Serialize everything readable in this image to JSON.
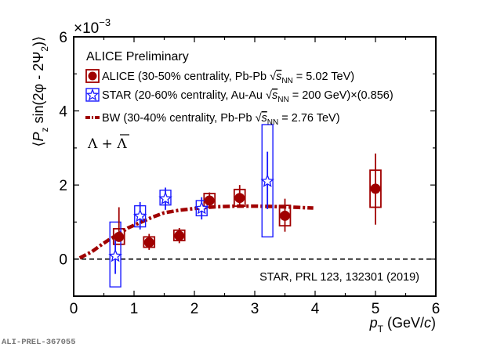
{
  "chart_data": {
    "type": "scatter",
    "title": "ALICE Preliminary",
    "xlabel_main": "p",
    "xlabel_sub": "T",
    "xlabel_unit": " (GeV/",
    "xlabel_unit_c": "c",
    "xlabel_unit_close": ")",
    "ylabel": "⟨P_z sin(2φ - 2Ψ_2)⟩",
    "ylabel_parts": {
      "open": "⟨",
      "P": "P",
      "z": "z",
      "mid": " sin(2φ - 2Ψ",
      "two": "2",
      "close": ")⟩"
    },
    "y_multiplier": "×10",
    "y_multiplier_exp": "−3",
    "xlim": [
      0,
      6
    ],
    "ylim": [
      -1,
      6
    ],
    "xticks": [
      0,
      1,
      2,
      3,
      4,
      5,
      6
    ],
    "yticks": [
      0,
      2,
      4,
      6
    ],
    "grid": false,
    "reference_line": {
      "y": 0,
      "style": "dashed"
    },
    "species_label": "Λ + Λ̄",
    "annotation": "STAR, PRL 123, 132301 (2019)",
    "legend": [
      {
        "name": "ALICE (30-50% centrality, Pb-Pb ",
        "sqrt": "s",
        "sub": "NN",
        "tail": " = 5.02 TeV)",
        "marker": "filled-circle",
        "color": "#a00000"
      },
      {
        "name": "STAR (20-60% centrality, Au-Au ",
        "sqrt": "s",
        "sub": "NN",
        "tail": " = 200 GeV)×(0.856)",
        "marker": "open-star",
        "color": "#1a1aff"
      },
      {
        "name": "BW (30-40% centrality, Pb-Pb ",
        "sqrt": "s",
        "sub": "NN",
        "tail": " = 2.76 TeV)",
        "marker": "dash-dot-line",
        "color": "#a00000"
      }
    ],
    "legend_placement": "top-left",
    "series": [
      {
        "name": "ALICE",
        "color": "#a00000",
        "marker": "filled-circle",
        "points": [
          {
            "x": 0.75,
            "y": 0.6,
            "stat": [
              0.55,
              1.4
            ],
            "sys": [
              0.4,
              0.82
            ],
            "xw": 0.09
          },
          {
            "x": 1.25,
            "y": 0.45,
            "stat": [
              0.25,
              0.68
            ],
            "sys": [
              0.32,
              0.6
            ],
            "xw": 0.09
          },
          {
            "x": 1.75,
            "y": 0.63,
            "stat": [
              0.43,
              0.84
            ],
            "sys": [
              0.5,
              0.78
            ],
            "xw": 0.09
          },
          {
            "x": 2.25,
            "y": 1.58,
            "stat": [
              1.38,
              1.8
            ],
            "sys": [
              1.4,
              1.77
            ],
            "xw": 0.09
          },
          {
            "x": 2.75,
            "y": 1.65,
            "stat": [
              1.4,
              2.0
            ],
            "sys": [
              1.43,
              1.88
            ],
            "xw": 0.09
          },
          {
            "x": 3.5,
            "y": 1.17,
            "stat": [
              0.74,
              1.63
            ],
            "sys": [
              0.9,
              1.45
            ],
            "xw": 0.09
          },
          {
            "x": 5.0,
            "y": 1.9,
            "stat": [
              0.93,
              2.85
            ],
            "sys": [
              1.4,
              2.4
            ],
            "xw": 0.09
          }
        ]
      },
      {
        "name": "STAR",
        "color": "#1a1aff",
        "marker": "open-star",
        "points": [
          {
            "x": 0.69,
            "y": 0.08,
            "stat": [
              -0.4,
              0.6
            ],
            "sys": [
              -0.75,
              1.0
            ],
            "xw": 0.09
          },
          {
            "x": 1.1,
            "y": 1.16,
            "stat": [
              0.8,
              1.54
            ],
            "sys": [
              0.87,
              1.44
            ],
            "xw": 0.09
          },
          {
            "x": 1.52,
            "y": 1.63,
            "stat": [
              1.33,
              1.93
            ],
            "sys": [
              1.46,
              1.86
            ],
            "xw": 0.09
          },
          {
            "x": 2.12,
            "y": 1.37,
            "stat": [
              1.07,
              1.67
            ],
            "sys": [
              1.17,
              1.58
            ],
            "xw": 0.09
          },
          {
            "x": 3.21,
            "y": 2.1,
            "stat": [
              1.35,
              2.9
            ],
            "sys": [
              0.6,
              3.63
            ],
            "xw": 0.09
          }
        ]
      },
      {
        "name": "BW",
        "color": "#a00000",
        "type": "line",
        "style": "dash-dot",
        "x": [
          0.1,
          0.3,
          0.47,
          0.6,
          0.73,
          0.9,
          1.12,
          1.3,
          1.5,
          1.75,
          2.03,
          2.35,
          2.68,
          3.0,
          3.32,
          3.65,
          3.97
        ],
        "y": [
          0.03,
          0.2,
          0.4,
          0.54,
          0.66,
          0.84,
          1.0,
          1.13,
          1.25,
          1.32,
          1.37,
          1.41,
          1.43,
          1.43,
          1.42,
          1.4,
          1.38
        ]
      }
    ]
  },
  "footer": {
    "preliminary_id": "ALI-PREL-367055"
  }
}
